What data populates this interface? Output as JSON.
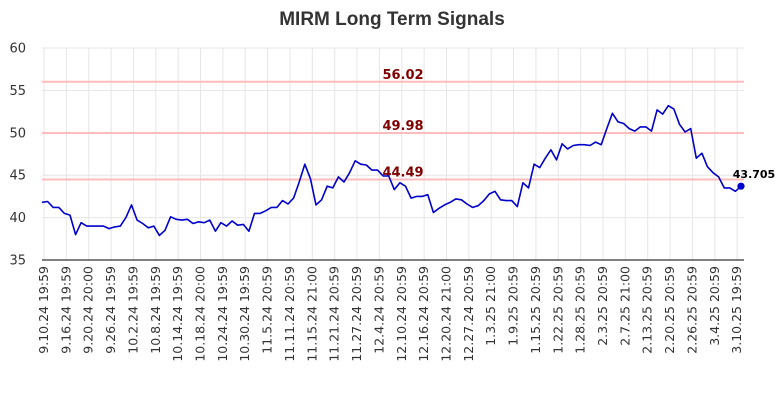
{
  "chart_data": {
    "type": "line",
    "title": "MIRM Long Term Signals",
    "xlabel": "",
    "ylabel": "",
    "ylim": [
      35,
      60
    ],
    "yticks": [
      35,
      40,
      45,
      50,
      55,
      60
    ],
    "grid": true,
    "x_tick_labels": [
      "9.10.24 19:59",
      "9.16.24 19:59",
      "9.20.24 20:00",
      "9.26.24 19:59",
      "10.2.24 19:59",
      "10.8.24 19:59",
      "10.14.24 19:59",
      "10.18.24 20:00",
      "10.24.24 19:59",
      "10.30.24 19:59",
      "11.5.24 20:59",
      "11.11.24 20:59",
      "11.15.24 21:00",
      "11.21.24 20:59",
      "11.27.24 20:59",
      "12.4.24 20:59",
      "12.10.24 20:59",
      "12.16.24 20:59",
      "12.20.24 21:00",
      "12.27.24 20:59",
      "1.3.25 21:00",
      "1.9.25 20:59",
      "1.15.25 20:59",
      "1.22.25 20:59",
      "1.28.25 20:59",
      "2.3.25 20:59",
      "2.7.25 21:00",
      "2.13.25 20:59",
      "2.20.25 20:59",
      "2.26.25 20:59",
      "3.4.25 20:59",
      "3.10.25 19:59"
    ],
    "values": [
      41.8,
      41.9,
      41.2,
      41.2,
      40.5,
      40.3,
      38.0,
      39.4,
      39.0,
      39.0,
      39.0,
      39.0,
      38.7,
      38.9,
      39.0,
      40.0,
      41.5,
      39.7,
      39.3,
      38.8,
      39.0,
      37.9,
      38.5,
      40.1,
      39.8,
      39.7,
      39.8,
      39.3,
      39.5,
      39.4,
      39.7,
      38.4,
      39.4,
      39.0,
      39.6,
      39.1,
      39.2,
      38.4,
      40.5,
      40.5,
      40.8,
      41.2,
      41.2,
      42.0,
      41.6,
      42.3,
      44.2,
      46.3,
      44.6,
      41.5,
      42.1,
      43.7,
      43.5,
      44.8,
      44.2,
      45.3,
      46.7,
      46.3,
      46.2,
      45.6,
      45.6,
      44.9,
      44.9,
      43.3,
      44.1,
      43.7,
      42.3,
      42.5,
      42.5,
      42.7,
      40.6,
      41.1,
      41.5,
      41.8,
      42.2,
      42.1,
      41.6,
      41.2,
      41.4,
      42.0,
      42.8,
      43.1,
      42.1,
      42.0,
      42.0,
      41.3,
      44.1,
      43.5,
      46.3,
      45.9,
      47.0,
      48.0,
      46.8,
      48.7,
      48.1,
      48.5,
      48.6,
      48.6,
      48.5,
      48.9,
      48.6,
      50.5,
      52.3,
      51.3,
      51.1,
      50.5,
      50.2,
      50.7,
      50.7,
      50.2,
      52.7,
      52.2,
      53.2,
      52.8,
      51.0,
      50.1,
      50.5,
      47.0,
      47.6,
      46.0,
      45.3,
      44.8,
      43.5,
      43.5,
      43.1,
      43.705
    ],
    "levels": [
      {
        "label": "56.02",
        "value": 56.02
      },
      {
        "label": "49.98",
        "value": 49.98
      },
      {
        "label": "44.49",
        "value": 44.49
      }
    ],
    "end_label": "43.705",
    "end_value": 43.705,
    "colors": {
      "line": "#0000cc",
      "level_line": "#ffbcbc",
      "level_text": "#800000",
      "grid": "#e6e6e6",
      "axis": "#000000"
    }
  }
}
